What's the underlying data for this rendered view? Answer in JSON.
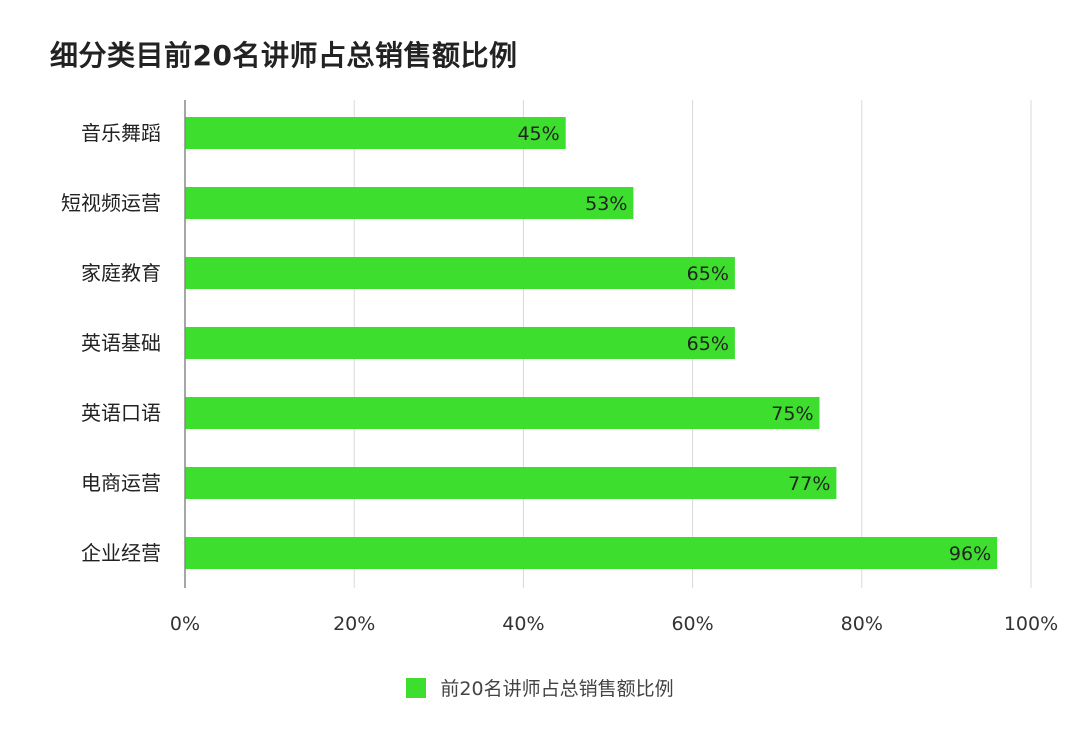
{
  "title": "细分类目前20名讲师占总销售额比例",
  "colors": {
    "bar": "#3ede2f",
    "grid": "#d9d9d9",
    "axis": "#888888",
    "text": "#222222"
  },
  "chart_data": {
    "type": "bar",
    "orientation": "horizontal",
    "title": "细分类目前20名讲师占总销售额比例",
    "categories": [
      "音乐舞蹈",
      "短视频运营",
      "家庭教育",
      "英语基础",
      "英语口语",
      "电商运营",
      "企业经营"
    ],
    "series": [
      {
        "name": "前20名讲师占总销售额比例",
        "values": [
          45,
          53,
          65,
          65,
          75,
          77,
          96
        ],
        "labels": [
          "45%",
          "53%",
          "65%",
          "65%",
          "75%",
          "77%",
          "96%"
        ]
      }
    ],
    "xlim": [
      0,
      100
    ],
    "xticks": [
      0,
      20,
      40,
      60,
      80,
      100
    ],
    "xtick_labels": [
      "0%",
      "20%",
      "40%",
      "60%",
      "80%",
      "100%"
    ],
    "grid": true,
    "legend": "bottom-center"
  }
}
